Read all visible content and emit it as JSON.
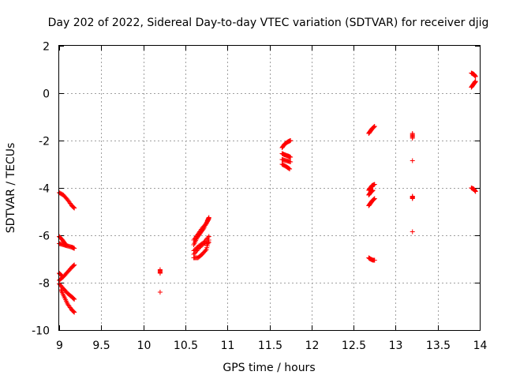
{
  "chart_data": {
    "type": "scatter",
    "title": "Day 202 of 2022, Sidereal Day-to-day VTEC variation (SDTVAR) for receiver djig",
    "xlabel": "GPS time / hours",
    "ylabel": "SDTVAR / TECUs",
    "xlim": [
      9,
      14
    ],
    "ylim": [
      -10,
      2
    ],
    "xticks": [
      9,
      9.5,
      10,
      10.5,
      11,
      11.5,
      12,
      12.5,
      13,
      13.5,
      14
    ],
    "xtick_labels": [
      "9",
      "9.5",
      "10",
      "10.5",
      "11",
      "11.5",
      "12",
      "12.5",
      "13",
      "13.5",
      "14"
    ],
    "yticks": [
      -10,
      -8,
      -6,
      -4,
      -2,
      0,
      2
    ],
    "ytick_labels": [
      "-10",
      "-8",
      "-6",
      "-4",
      "-2",
      "0",
      "2"
    ],
    "grid": true,
    "marker": "+",
    "marker_color": "#ff0000",
    "segments": [
      [
        [
          9.0,
          -4.2
        ],
        [
          9.05,
          -4.3
        ],
        [
          9.1,
          -4.5
        ],
        [
          9.15,
          -4.75
        ],
        [
          9.18,
          -4.85
        ]
      ],
      [
        [
          9.0,
          -6.35
        ],
        [
          9.05,
          -6.4
        ],
        [
          9.1,
          -6.45
        ],
        [
          9.15,
          -6.5
        ],
        [
          9.18,
          -6.55
        ]
      ],
      [
        [
          9.0,
          -6.05
        ],
        [
          9.04,
          -6.2
        ],
        [
          9.08,
          -6.4
        ]
      ],
      [
        [
          9.0,
          -7.9
        ],
        [
          9.05,
          -7.75
        ],
        [
          9.1,
          -7.55
        ],
        [
          9.15,
          -7.35
        ],
        [
          9.18,
          -7.25
        ]
      ],
      [
        [
          9.0,
          -7.6
        ],
        [
          9.03,
          -7.7
        ]
      ],
      [
        [
          9.0,
          -8.05
        ],
        [
          9.05,
          -8.25
        ],
        [
          9.1,
          -8.45
        ],
        [
          9.15,
          -8.6
        ],
        [
          9.18,
          -8.7
        ]
      ],
      [
        [
          9.02,
          -8.3
        ],
        [
          9.06,
          -8.6
        ],
        [
          9.1,
          -8.9
        ],
        [
          9.15,
          -9.15
        ],
        [
          9.18,
          -9.25
        ]
      ],
      [
        [
          10.2,
          -7.45
        ],
        [
          10.2,
          -7.6
        ]
      ],
      [
        [
          10.2,
          -8.4
        ]
      ],
      [
        [
          10.6,
          -6.95
        ],
        [
          10.65,
          -6.95
        ],
        [
          10.7,
          -6.8
        ],
        [
          10.75,
          -6.6
        ],
        [
          10.78,
          -6.2
        ]
      ],
      [
        [
          10.6,
          -6.65
        ],
        [
          10.66,
          -6.45
        ],
        [
          10.72,
          -6.3
        ],
        [
          10.78,
          -6.05
        ]
      ],
      [
        [
          10.6,
          -6.4
        ],
        [
          10.64,
          -6.1
        ],
        [
          10.68,
          -5.9
        ],
        [
          10.72,
          -5.7
        ],
        [
          10.76,
          -5.4
        ],
        [
          10.78,
          -5.25
        ]
      ],
      [
        [
          10.6,
          -6.2
        ],
        [
          10.65,
          -5.95
        ],
        [
          10.7,
          -5.7
        ],
        [
          10.75,
          -5.5
        ],
        [
          10.78,
          -5.3
        ]
      ],
      [
        [
          10.6,
          -6.8
        ],
        [
          10.66,
          -6.55
        ],
        [
          10.72,
          -6.35
        ],
        [
          10.78,
          -6.3
        ]
      ],
      [
        [
          11.65,
          -2.3
        ],
        [
          11.68,
          -2.15
        ],
        [
          11.72,
          -2.05
        ],
        [
          11.75,
          -2.0
        ]
      ],
      [
        [
          11.65,
          -2.55
        ],
        [
          11.68,
          -2.6
        ],
        [
          11.72,
          -2.65
        ],
        [
          11.75,
          -2.7
        ]
      ],
      [
        [
          11.65,
          -2.8
        ],
        [
          11.7,
          -2.85
        ],
        [
          11.75,
          -2.9
        ]
      ],
      [
        [
          11.65,
          -3.0
        ],
        [
          11.7,
          -3.1
        ],
        [
          11.74,
          -3.2
        ]
      ],
      [
        [
          12.68,
          -1.7
        ],
        [
          12.7,
          -1.6
        ],
        [
          12.72,
          -1.5
        ],
        [
          12.75,
          -1.4
        ]
      ],
      [
        [
          12.68,
          -4.1
        ],
        [
          12.7,
          -4.0
        ],
        [
          12.72,
          -3.9
        ],
        [
          12.75,
          -3.85
        ]
      ],
      [
        [
          12.68,
          -4.3
        ],
        [
          12.7,
          -4.2
        ],
        [
          12.73,
          -4.1
        ]
      ],
      [
        [
          12.68,
          -4.75
        ],
        [
          12.7,
          -4.65
        ],
        [
          12.72,
          -4.55
        ],
        [
          12.75,
          -4.45
        ]
      ],
      [
        [
          12.68,
          -6.95
        ],
        [
          12.7,
          -7.0
        ],
        [
          12.73,
          -7.05
        ],
        [
          12.75,
          -7.05
        ]
      ],
      [
        [
          13.2,
          -1.7
        ],
        [
          13.2,
          -1.9
        ]
      ],
      [
        [
          13.2,
          -2.85
        ]
      ],
      [
        [
          13.2,
          -4.35
        ],
        [
          13.2,
          -4.45
        ]
      ],
      [
        [
          13.2,
          -5.85
        ]
      ],
      [
        [
          13.9,
          0.85
        ],
        [
          13.93,
          0.8
        ],
        [
          13.95,
          0.7
        ]
      ],
      [
        [
          13.9,
          0.25
        ],
        [
          13.92,
          0.35
        ],
        [
          13.94,
          0.45
        ],
        [
          13.95,
          0.5
        ]
      ],
      [
        [
          13.9,
          -4.0
        ],
        [
          13.93,
          -4.05
        ],
        [
          13.95,
          -4.15
        ]
      ]
    ]
  }
}
